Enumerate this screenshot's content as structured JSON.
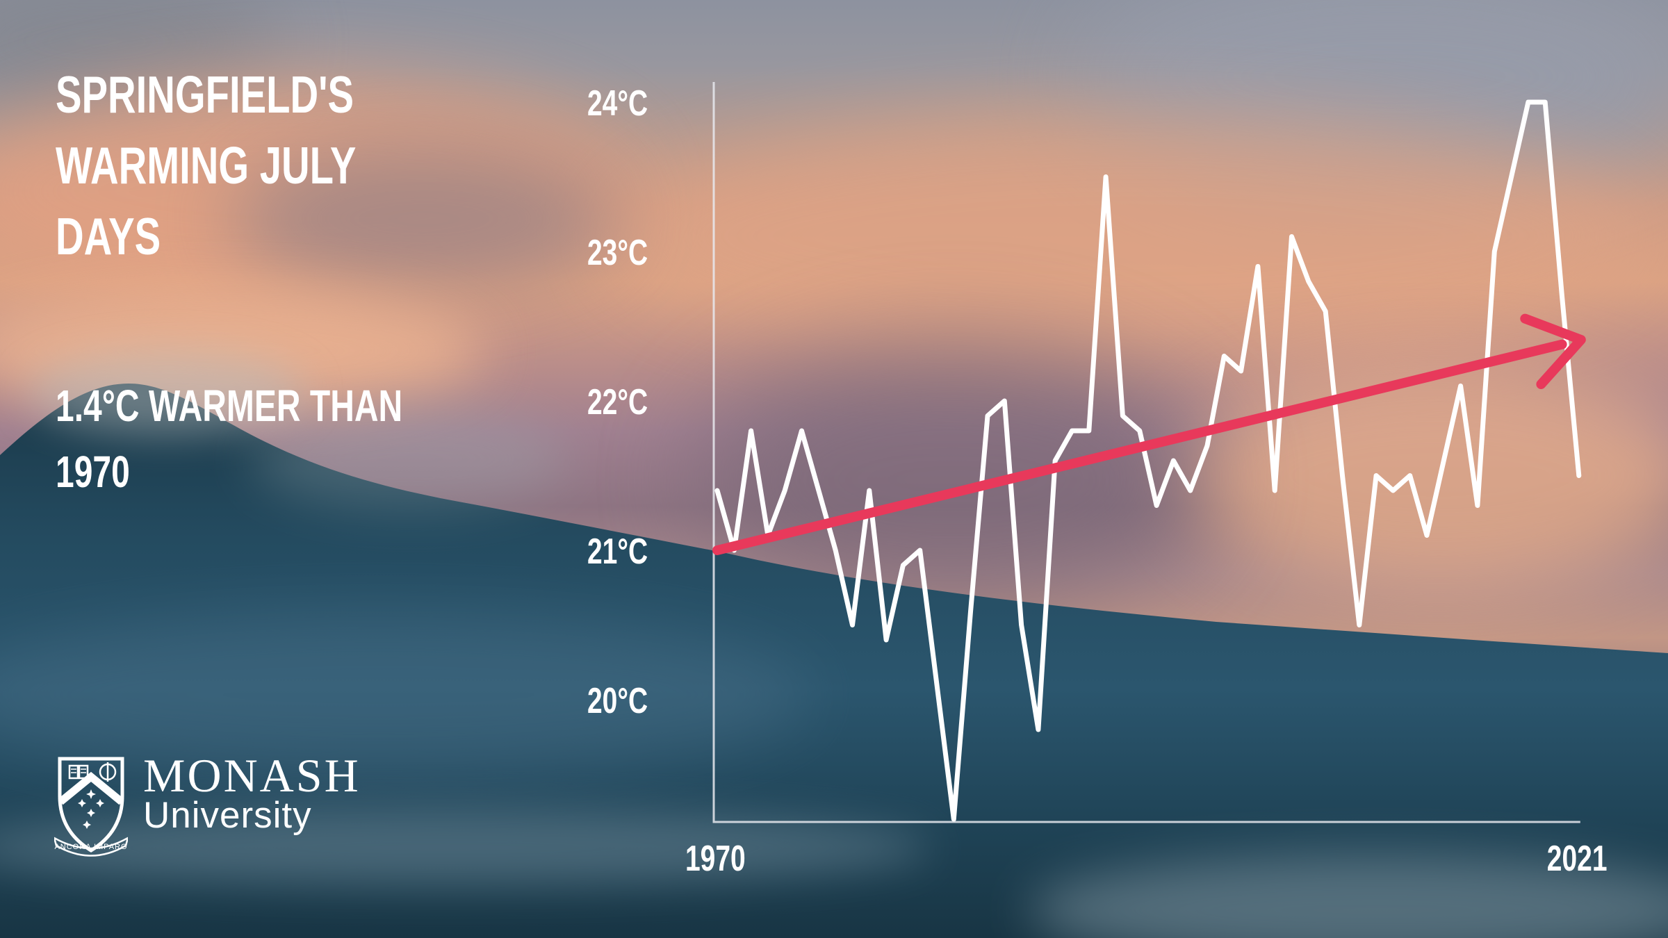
{
  "title": {
    "lines": [
      "SPRINGFIELD'S",
      "WARMING JULY",
      "DAYS"
    ]
  },
  "subtitle": {
    "lines": [
      "1.4°C WARMER THAN",
      "1970"
    ]
  },
  "branding": {
    "org": "MONASH",
    "org_sub": "University",
    "crest_motto": "ANCORA IMPARO"
  },
  "colors": {
    "trend_red": "#e8395b",
    "data_line_white": "#ffffff",
    "axis_white": "#e8e9ee",
    "text_white": "#ffffff"
  },
  "chart_data": {
    "type": "line",
    "title": "SPRINGFIELD'S WARMING JULY DAYS",
    "ylabel": "",
    "xlabel": "",
    "unit": "°C",
    "grid": false,
    "legend": "none",
    "ylim": [
      19.2,
      24.3
    ],
    "xlim": [
      1970,
      2021
    ],
    "y_ticks": [
      {
        "value": 24,
        "label": "24°C"
      },
      {
        "value": 23,
        "label": "23°C"
      },
      {
        "value": 22,
        "label": "22°C"
      },
      {
        "value": 21,
        "label": "21°C"
      },
      {
        "value": 20,
        "label": "20°C"
      }
    ],
    "x_ticks": [
      {
        "value": 1970,
        "label": "1970"
      },
      {
        "value": 2021,
        "label": "2021"
      }
    ],
    "x": [
      1970,
      1971,
      1972,
      1973,
      1974,
      1975,
      1976,
      1977,
      1978,
      1979,
      1980,
      1981,
      1982,
      1983,
      1984,
      1985,
      1986,
      1987,
      1988,
      1989,
      1990,
      1991,
      1992,
      1993,
      1994,
      1995,
      1996,
      1997,
      1998,
      1999,
      2000,
      2001,
      2002,
      2003,
      2004,
      2005,
      2006,
      2007,
      2008,
      2009,
      2010,
      2011,
      2012,
      2013,
      2014,
      2015,
      2016,
      2017,
      2018,
      2019,
      2020,
      2021
    ],
    "values": [
      21.4,
      21.0,
      21.8,
      21.1,
      21.4,
      21.8,
      21.4,
      21.0,
      20.5,
      21.4,
      20.4,
      20.9,
      21.0,
      20.1,
      19.2,
      20.6,
      21.9,
      22.0,
      20.5,
      19.8,
      21.6,
      21.8,
      21.8,
      23.5,
      21.9,
      21.8,
      21.3,
      21.6,
      21.4,
      21.7,
      22.3,
      22.2,
      22.9,
      21.4,
      23.1,
      22.8,
      22.6,
      21.5,
      20.5,
      21.5,
      21.4,
      21.5,
      21.1,
      21.6,
      22.1,
      21.3,
      23.0,
      23.5,
      24.0,
      24.0,
      22.7,
      21.5
    ],
    "trend": {
      "label": "1.4°C warmer than 1970",
      "start_year": 1970,
      "start_value": 21.0,
      "end_year": 2021,
      "end_value": 22.4,
      "style": "arrow"
    }
  }
}
